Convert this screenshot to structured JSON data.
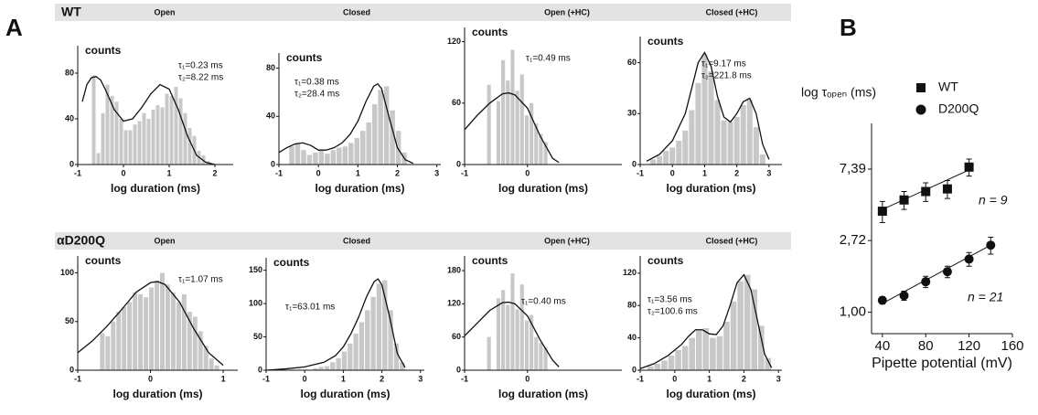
{
  "panel_labels": [
    "A",
    "B"
  ],
  "rows": [
    "WT",
    "αD200Q"
  ],
  "chart_data": [
    {
      "type": "histogram",
      "title": "Open",
      "ylabel": "counts",
      "xlabel": "log duration (ms)",
      "annotations": [
        "τ₁=0.23 ms",
        "τ₂=8.22 ms"
      ],
      "color": "#c8c8c8",
      "xlim": [
        -1,
        2.4
      ],
      "ylim": [
        0,
        96
      ],
      "xticks": [
        -1,
        0,
        1,
        2
      ],
      "yticks": [
        0,
        40,
        80
      ],
      "bins": [
        -0.7,
        -0.6,
        -0.5,
        -0.4,
        -0.3,
        -0.2,
        -0.1,
        0,
        0.1,
        0.2,
        0.3,
        0.4,
        0.5,
        0.6,
        0.7,
        0.8,
        0.9,
        1.0,
        1.1,
        1.2,
        1.3,
        1.4,
        1.5,
        1.6,
        1.7,
        1.8,
        1.9
      ],
      "values": [
        78,
        10,
        45,
        70,
        60,
        55,
        40,
        30,
        30,
        35,
        38,
        45,
        40,
        48,
        52,
        50,
        62,
        60,
        68,
        58,
        45,
        32,
        25,
        12,
        8,
        3
      ],
      "fit": {
        "x": [
          -0.9,
          -0.8,
          -0.7,
          -0.6,
          -0.5,
          -0.4,
          -0.2,
          0,
          0.2,
          0.4,
          0.6,
          0.8,
          1.0,
          1.2,
          1.4,
          1.6,
          1.8,
          2.0
        ],
        "values": [
          55,
          70,
          76,
          77,
          74,
          66,
          48,
          38,
          40,
          50,
          62,
          70,
          66,
          48,
          25,
          8,
          2,
          0
        ]
      }
    },
    {
      "type": "histogram",
      "title": "Closed",
      "ylabel": "counts",
      "xlabel": "log duration (ms)",
      "annotations": [
        "τ₁=0.38 ms",
        "τ₂=28.4 ms"
      ],
      "color": "#c8c8c8",
      "xlim": [
        -1,
        3.1
      ],
      "ylim": [
        0,
        85
      ],
      "xticks": [
        -1,
        0,
        1,
        2,
        3
      ],
      "yticks": [
        0,
        40,
        80
      ],
      "bins": [
        -0.75,
        -0.6,
        -0.45,
        -0.3,
        -0.15,
        0,
        0.15,
        0.3,
        0.45,
        0.6,
        0.75,
        0.9,
        1.05,
        1.2,
        1.35,
        1.5,
        1.65,
        1.8,
        1.95,
        2.1,
        2.25
      ],
      "values": [
        15,
        18,
        12,
        8,
        10,
        12,
        9,
        12,
        14,
        15,
        18,
        22,
        28,
        35,
        50,
        62,
        65,
        45,
        28,
        10
      ],
      "fit": {
        "x": [
          -1,
          -0.8,
          -0.6,
          -0.4,
          -0.2,
          0,
          0.2,
          0.4,
          0.6,
          0.8,
          1.0,
          1.2,
          1.4,
          1.5,
          1.6,
          1.8,
          2.0,
          2.2,
          2.4
        ],
        "values": [
          10,
          14,
          17,
          18,
          16,
          12,
          12,
          14,
          18,
          25,
          36,
          52,
          65,
          67,
          63,
          38,
          14,
          4,
          1
        ]
      }
    },
    {
      "type": "histogram",
      "title": "Open (+HC)",
      "ylabel": "counts",
      "xlabel": "log duration (ms)",
      "annotations": [
        "τ₁=0.49 ms"
      ],
      "color": "#c8c8c8",
      "xlim": [
        -1,
        1.5
      ],
      "ylim": [
        0,
        125
      ],
      "xticks": [
        -1,
        0
      ],
      "yticks": [
        0,
        60,
        120
      ],
      "bins": [
        -0.65,
        -0.575,
        -0.5,
        -0.425,
        -0.35,
        -0.275,
        -0.2,
        -0.125,
        -0.05,
        0.025,
        0.1,
        0.175,
        0.25,
        0.325
      ],
      "values": [
        78,
        0,
        62,
        102,
        82,
        112,
        72,
        88,
        48,
        60,
        40,
        30,
        22
      ],
      "fit": {
        "x": [
          -1,
          -0.8,
          -0.6,
          -0.4,
          -0.3,
          -0.2,
          0,
          0.2,
          0.4,
          0.5
        ],
        "values": [
          34,
          48,
          60,
          69,
          70,
          68,
          55,
          28,
          6,
          2
        ]
      }
    },
    {
      "type": "histogram",
      "title": "Closed (+HC)",
      "ylabel": "counts",
      "xlabel": "log duration (ms)",
      "annotations": [
        "τ₁=9.17 ms",
        "τ₂=221.8 ms"
      ],
      "color": "#c8c8c8",
      "xlim": [
        -1,
        3.4
      ],
      "ylim": [
        0,
        70
      ],
      "xticks": [
        -1,
        0,
        1,
        2,
        3
      ],
      "yticks": [
        0,
        30,
        60
      ],
      "bins": [
        -0.7,
        -0.5,
        -0.3,
        -0.1,
        0.1,
        0.3,
        0.5,
        0.7,
        0.9,
        1.1,
        1.3,
        1.5,
        1.7,
        1.9,
        2.1,
        2.3,
        2.5,
        2.7,
        2.9
      ],
      "values": [
        3,
        5,
        8,
        10,
        14,
        20,
        32,
        48,
        65,
        55,
        38,
        26,
        25,
        28,
        35,
        38,
        22,
        6
      ],
      "fit": {
        "x": [
          -0.8,
          -0.4,
          0,
          0.4,
          0.6,
          0.8,
          1.0,
          1.2,
          1.4,
          1.6,
          1.8,
          2.0,
          2.2,
          2.4,
          2.6,
          2.8,
          3.0
        ],
        "values": [
          2,
          6,
          14,
          30,
          45,
          60,
          66,
          58,
          40,
          28,
          25,
          30,
          37,
          39,
          30,
          12,
          3
        ]
      }
    },
    {
      "type": "histogram",
      "title": "Open",
      "ylabel": "counts",
      "xlabel": "log duration (ms)",
      "annotations": [
        "τ₁=1.07 ms"
      ],
      "color": "#c8c8c8",
      "xlim": [
        -1,
        1.2
      ],
      "ylim": [
        0,
        108
      ],
      "xticks": [
        -1,
        0,
        1
      ],
      "yticks": [
        0,
        50,
        100
      ],
      "bins": [
        -0.7,
        -0.625,
        -0.55,
        -0.475,
        -0.4,
        -0.325,
        -0.25,
        -0.175,
        -0.1,
        -0.025,
        0.05,
        0.125,
        0.2,
        0.275,
        0.35,
        0.425,
        0.5,
        0.575,
        0.65,
        0.725,
        0.8,
        0.875,
        0.95
      ],
      "values": [
        38,
        35,
        50,
        60,
        65,
        70,
        80,
        78,
        75,
        85,
        92,
        100,
        88,
        80,
        70,
        78,
        60,
        55,
        40,
        25,
        12,
        5
      ],
      "fit": {
        "x": [
          -1,
          -0.8,
          -0.6,
          -0.4,
          -0.2,
          0,
          0.1,
          0.2,
          0.4,
          0.6,
          0.8,
          1.0
        ],
        "values": [
          18,
          30,
          45,
          62,
          80,
          90,
          91,
          88,
          70,
          42,
          18,
          5
        ]
      }
    },
    {
      "type": "histogram",
      "title": "Closed",
      "ylabel": "counts",
      "xlabel": "log duration (ms)",
      "annotations": [
        "τ₁=63.01 ms"
      ],
      "color": "#c8c8c8",
      "xlim": [
        -1,
        3.1
      ],
      "ylim": [
        0,
        155
      ],
      "xticks": [
        -1,
        0,
        1,
        2,
        3
      ],
      "yticks": [
        0,
        50,
        100,
        150
      ],
      "bins": [
        0.2,
        0.35,
        0.5,
        0.65,
        0.8,
        0.95,
        1.1,
        1.25,
        1.4,
        1.55,
        1.7,
        1.85,
        2.0,
        2.15,
        2.3,
        2.45,
        2.6
      ],
      "values": [
        3,
        5,
        6,
        12,
        18,
        28,
        40,
        55,
        72,
        90,
        110,
        130,
        135,
        90,
        40,
        12
      ],
      "fit": {
        "x": [
          -1,
          -0.5,
          0,
          0.5,
          0.8,
          1.0,
          1.2,
          1.4,
          1.6,
          1.8,
          1.9,
          2.0,
          2.2,
          2.4,
          2.6
        ],
        "values": [
          0,
          2,
          5,
          12,
          22,
          35,
          55,
          80,
          110,
          133,
          137,
          128,
          80,
          25,
          4
        ]
      }
    },
    {
      "type": "histogram",
      "title": "Open (+HC)",
      "ylabel": "counts",
      "xlabel": "log duration (ms)",
      "annotations": [
        "τ₁=0.40 ms"
      ],
      "color": "#c8c8c8",
      "xlim": [
        -1,
        1.5
      ],
      "ylim": [
        0,
        190
      ],
      "xticks": [
        -1,
        0
      ],
      "yticks": [
        0,
        60,
        120,
        180
      ],
      "bins": [
        -0.65,
        -0.575,
        -0.5,
        -0.425,
        -0.35,
        -0.275,
        -0.2,
        -0.125,
        -0.05,
        0.025,
        0.1,
        0.175,
        0.25,
        0.325
      ],
      "values": [
        60,
        0,
        130,
        145,
        118,
        175,
        110,
        155,
        90,
        100,
        60,
        50,
        42
      ],
      "fit": {
        "x": [
          -1,
          -0.8,
          -0.6,
          -0.4,
          -0.3,
          -0.2,
          0,
          0.2,
          0.4,
          0.5
        ],
        "values": [
          62,
          85,
          108,
          122,
          123,
          120,
          98,
          55,
          18,
          6
        ]
      }
    },
    {
      "type": "histogram",
      "title": "Closed (+HC)",
      "ylabel": "counts",
      "xlabel": "log duration (ms)",
      "annotations": [
        "τ₁=3.56 ms",
        "τ₂=100.6 ms"
      ],
      "color": "#c8c8c8",
      "xlim": [
        -1,
        3.1
      ],
      "ylim": [
        0,
        130
      ],
      "xticks": [
        -1,
        0,
        1,
        2,
        3
      ],
      "yticks": [
        0,
        40,
        80,
        120
      ],
      "bins": [
        -0.8,
        -0.6,
        -0.4,
        -0.2,
        0,
        0.2,
        0.4,
        0.6,
        0.8,
        1.0,
        1.2,
        1.4,
        1.6,
        1.8,
        2.0,
        2.2,
        2.4,
        2.6,
        2.8
      ],
      "values": [
        5,
        8,
        12,
        18,
        25,
        30,
        40,
        50,
        52,
        40,
        42,
        60,
        85,
        110,
        118,
        100,
        55,
        15
      ],
      "fit": {
        "x": [
          -1,
          -0.6,
          -0.2,
          0.2,
          0.4,
          0.6,
          0.8,
          1.0,
          1.2,
          1.4,
          1.6,
          1.8,
          2.0,
          2.2,
          2.4,
          2.6,
          2.8
        ],
        "values": [
          2,
          8,
          18,
          32,
          42,
          50,
          50,
          45,
          44,
          55,
          80,
          108,
          118,
          100,
          60,
          20,
          3
        ]
      }
    },
    {
      "type": "scatter",
      "ylabel": "log τₒₚₑₙ (ms)",
      "xlabel": "Pipette potential (mV)",
      "log_y": true,
      "xlim": [
        30,
        160
      ],
      "ylim": [
        0.74,
        14
      ],
      "xticks": [
        40,
        80,
        120,
        160
      ],
      "yticks": [
        {
          "value": 1.0,
          "label": "1,00"
        },
        {
          "value": 2.72,
          "label": "2,72"
        },
        {
          "value": 7.39,
          "label": "7,39"
        }
      ],
      "annotations": [
        "n = 9",
        "n = 21"
      ],
      "series": [
        {
          "name": "WT",
          "marker": "square",
          "color": "#111111",
          "x": [
            40,
            60,
            80,
            100,
            120
          ],
          "values": [
            4.1,
            4.8,
            5.4,
            5.6,
            7.6
          ],
          "errors": [
            0.6,
            0.6,
            0.7,
            0.7,
            0.9
          ],
          "fit": {
            "x": [
              40,
              120
            ],
            "values": [
              4.2,
              7.3
            ]
          }
        },
        {
          "name": "D200Q",
          "marker": "circle",
          "color": "#111111",
          "x": [
            40,
            60,
            80,
            100,
            120,
            140
          ],
          "values": [
            1.18,
            1.26,
            1.53,
            1.76,
            2.1,
            2.55
          ],
          "errors": [
            0.06,
            0.08,
            0.12,
            0.14,
            0.2,
            0.3
          ],
          "fit": {
            "x": [
              40,
              140
            ],
            "values": [
              1.13,
              2.55
            ]
          }
        }
      ]
    }
  ]
}
